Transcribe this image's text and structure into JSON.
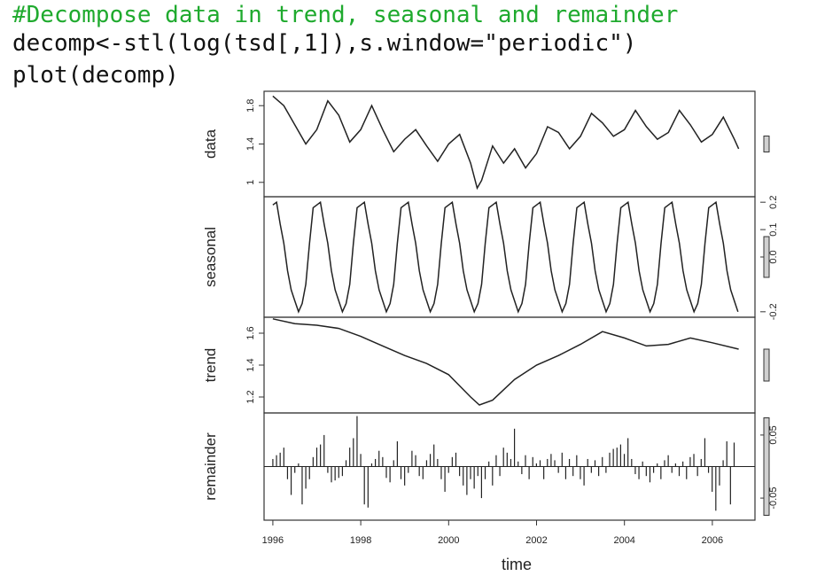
{
  "code": {
    "comment": "#Decompose data in trend, seasonal and remainder",
    "line1": "decomp<-stl(log(tsd[,1]),s.window=\"periodic\")",
    "line2": "plot(decomp)"
  },
  "chart_data": {
    "type": "line",
    "xlabel": "time",
    "x_ticks": [
      1996,
      1998,
      2000,
      2002,
      2004,
      2006
    ],
    "xlim": [
      1995.8,
      2006.97
    ],
    "panels": [
      {
        "name": "data",
        "ylabel": "data",
        "ylim": [
          0.85,
          1.95
        ],
        "ticks": [
          1.0,
          1.4,
          1.8
        ],
        "tick_side": "left",
        "x": [
          1996.0,
          1996.25,
          1996.5,
          1996.75,
          1997.0,
          1997.25,
          1997.5,
          1997.75,
          1998.0,
          1998.25,
          1998.5,
          1998.75,
          1999.0,
          1999.25,
          1999.5,
          1999.75,
          2000.0,
          2000.25,
          2000.5,
          2000.65,
          2000.75,
          2001.0,
          2001.25,
          2001.5,
          2001.75,
          2002.0,
          2002.25,
          2002.5,
          2002.75,
          2003.0,
          2003.25,
          2003.5,
          2003.75,
          2004.0,
          2004.25,
          2004.5,
          2004.75,
          2005.0,
          2005.25,
          2005.5,
          2005.75,
          2006.0,
          2006.25,
          2006.5,
          2006.6
        ],
        "values": [
          1.9,
          1.8,
          1.6,
          1.4,
          1.55,
          1.85,
          1.7,
          1.42,
          1.55,
          1.8,
          1.55,
          1.32,
          1.45,
          1.55,
          1.38,
          1.22,
          1.4,
          1.5,
          1.2,
          0.94,
          1.02,
          1.38,
          1.2,
          1.35,
          1.15,
          1.3,
          1.58,
          1.52,
          1.35,
          1.48,
          1.72,
          1.62,
          1.48,
          1.55,
          1.75,
          1.58,
          1.45,
          1.52,
          1.75,
          1.6,
          1.42,
          1.5,
          1.68,
          1.45,
          1.35
        ]
      },
      {
        "name": "seasonal",
        "ylabel": "seasonal",
        "ylim": [
          -0.22,
          0.22
        ],
        "ticks": [
          -0.2,
          0.0,
          0.1,
          0.2
        ],
        "tick_side": "right",
        "pattern": [
          0.19,
          0.2,
          0.12,
          0.05,
          -0.05,
          -0.12,
          -0.16,
          -0.2,
          -0.17,
          -0.1,
          0.05,
          0.18
        ]
      },
      {
        "name": "trend",
        "ylabel": "trend",
        "ylim": [
          1.1,
          1.7
        ],
        "ticks": [
          1.2,
          1.4,
          1.6
        ],
        "tick_side": "left",
        "x": [
          1996.0,
          1996.5,
          1997.0,
          1997.5,
          1998.0,
          1998.5,
          1999.0,
          1999.5,
          2000.0,
          2000.5,
          2000.7,
          2001.0,
          2001.5,
          2002.0,
          2002.5,
          2003.0,
          2003.5,
          2004.0,
          2004.5,
          2005.0,
          2005.5,
          2006.0,
          2006.6
        ],
        "values": [
          1.69,
          1.66,
          1.65,
          1.63,
          1.58,
          1.52,
          1.46,
          1.41,
          1.34,
          1.2,
          1.15,
          1.18,
          1.31,
          1.4,
          1.46,
          1.53,
          1.61,
          1.57,
          1.52,
          1.53,
          1.57,
          1.54,
          1.5
        ]
      },
      {
        "name": "remainder",
        "ylabel": "remainder",
        "ylim": [
          -0.085,
          0.085
        ],
        "ticks": [
          -0.05,
          0.05
        ],
        "tick_side": "right",
        "x_start": 1996.0,
        "x_step": 0.0833,
        "values": [
          0.012,
          0.018,
          0.022,
          0.03,
          -0.02,
          -0.045,
          -0.01,
          0.005,
          -0.06,
          -0.035,
          -0.02,
          0.015,
          0.03,
          0.035,
          0.05,
          -0.01,
          -0.025,
          -0.022,
          -0.018,
          -0.015,
          0.01,
          0.03,
          0.045,
          0.08,
          0.02,
          -0.06,
          -0.065,
          0.005,
          0.012,
          0.025,
          0.015,
          -0.018,
          -0.025,
          0.01,
          0.04,
          -0.02,
          -0.03,
          -0.01,
          0.025,
          0.018,
          -0.015,
          -0.02,
          0.01,
          0.02,
          0.035,
          0.012,
          -0.02,
          -0.04,
          -0.01,
          0.015,
          0.022,
          -0.015,
          -0.03,
          -0.045,
          -0.02,
          -0.035,
          -0.015,
          -0.05,
          -0.02,
          0.008,
          -0.03,
          0.018,
          -0.015,
          0.03,
          0.022,
          0.012,
          0.06,
          0.008,
          -0.012,
          0.018,
          -0.02,
          0.015,
          0.005,
          0.01,
          -0.02,
          0.012,
          0.02,
          0.01,
          -0.01,
          0.022,
          -0.02,
          0.012,
          -0.015,
          0.018,
          -0.02,
          -0.03,
          0.012,
          -0.01,
          0.01,
          -0.015,
          0.015,
          -0.01,
          0.022,
          0.028,
          0.03,
          0.035,
          0.02,
          0.045,
          0.012,
          -0.012,
          -0.02,
          0.008,
          -0.015,
          -0.025,
          -0.01,
          0.005,
          -0.02,
          0.01,
          0.018,
          -0.01,
          0.005,
          -0.015,
          0.008,
          -0.02,
          0.015,
          0.02,
          -0.015,
          0.012,
          0.045,
          -0.01,
          -0.04,
          -0.07,
          -0.03,
          0.01,
          0.04,
          -0.06,
          0.038
        ]
      }
    ]
  }
}
